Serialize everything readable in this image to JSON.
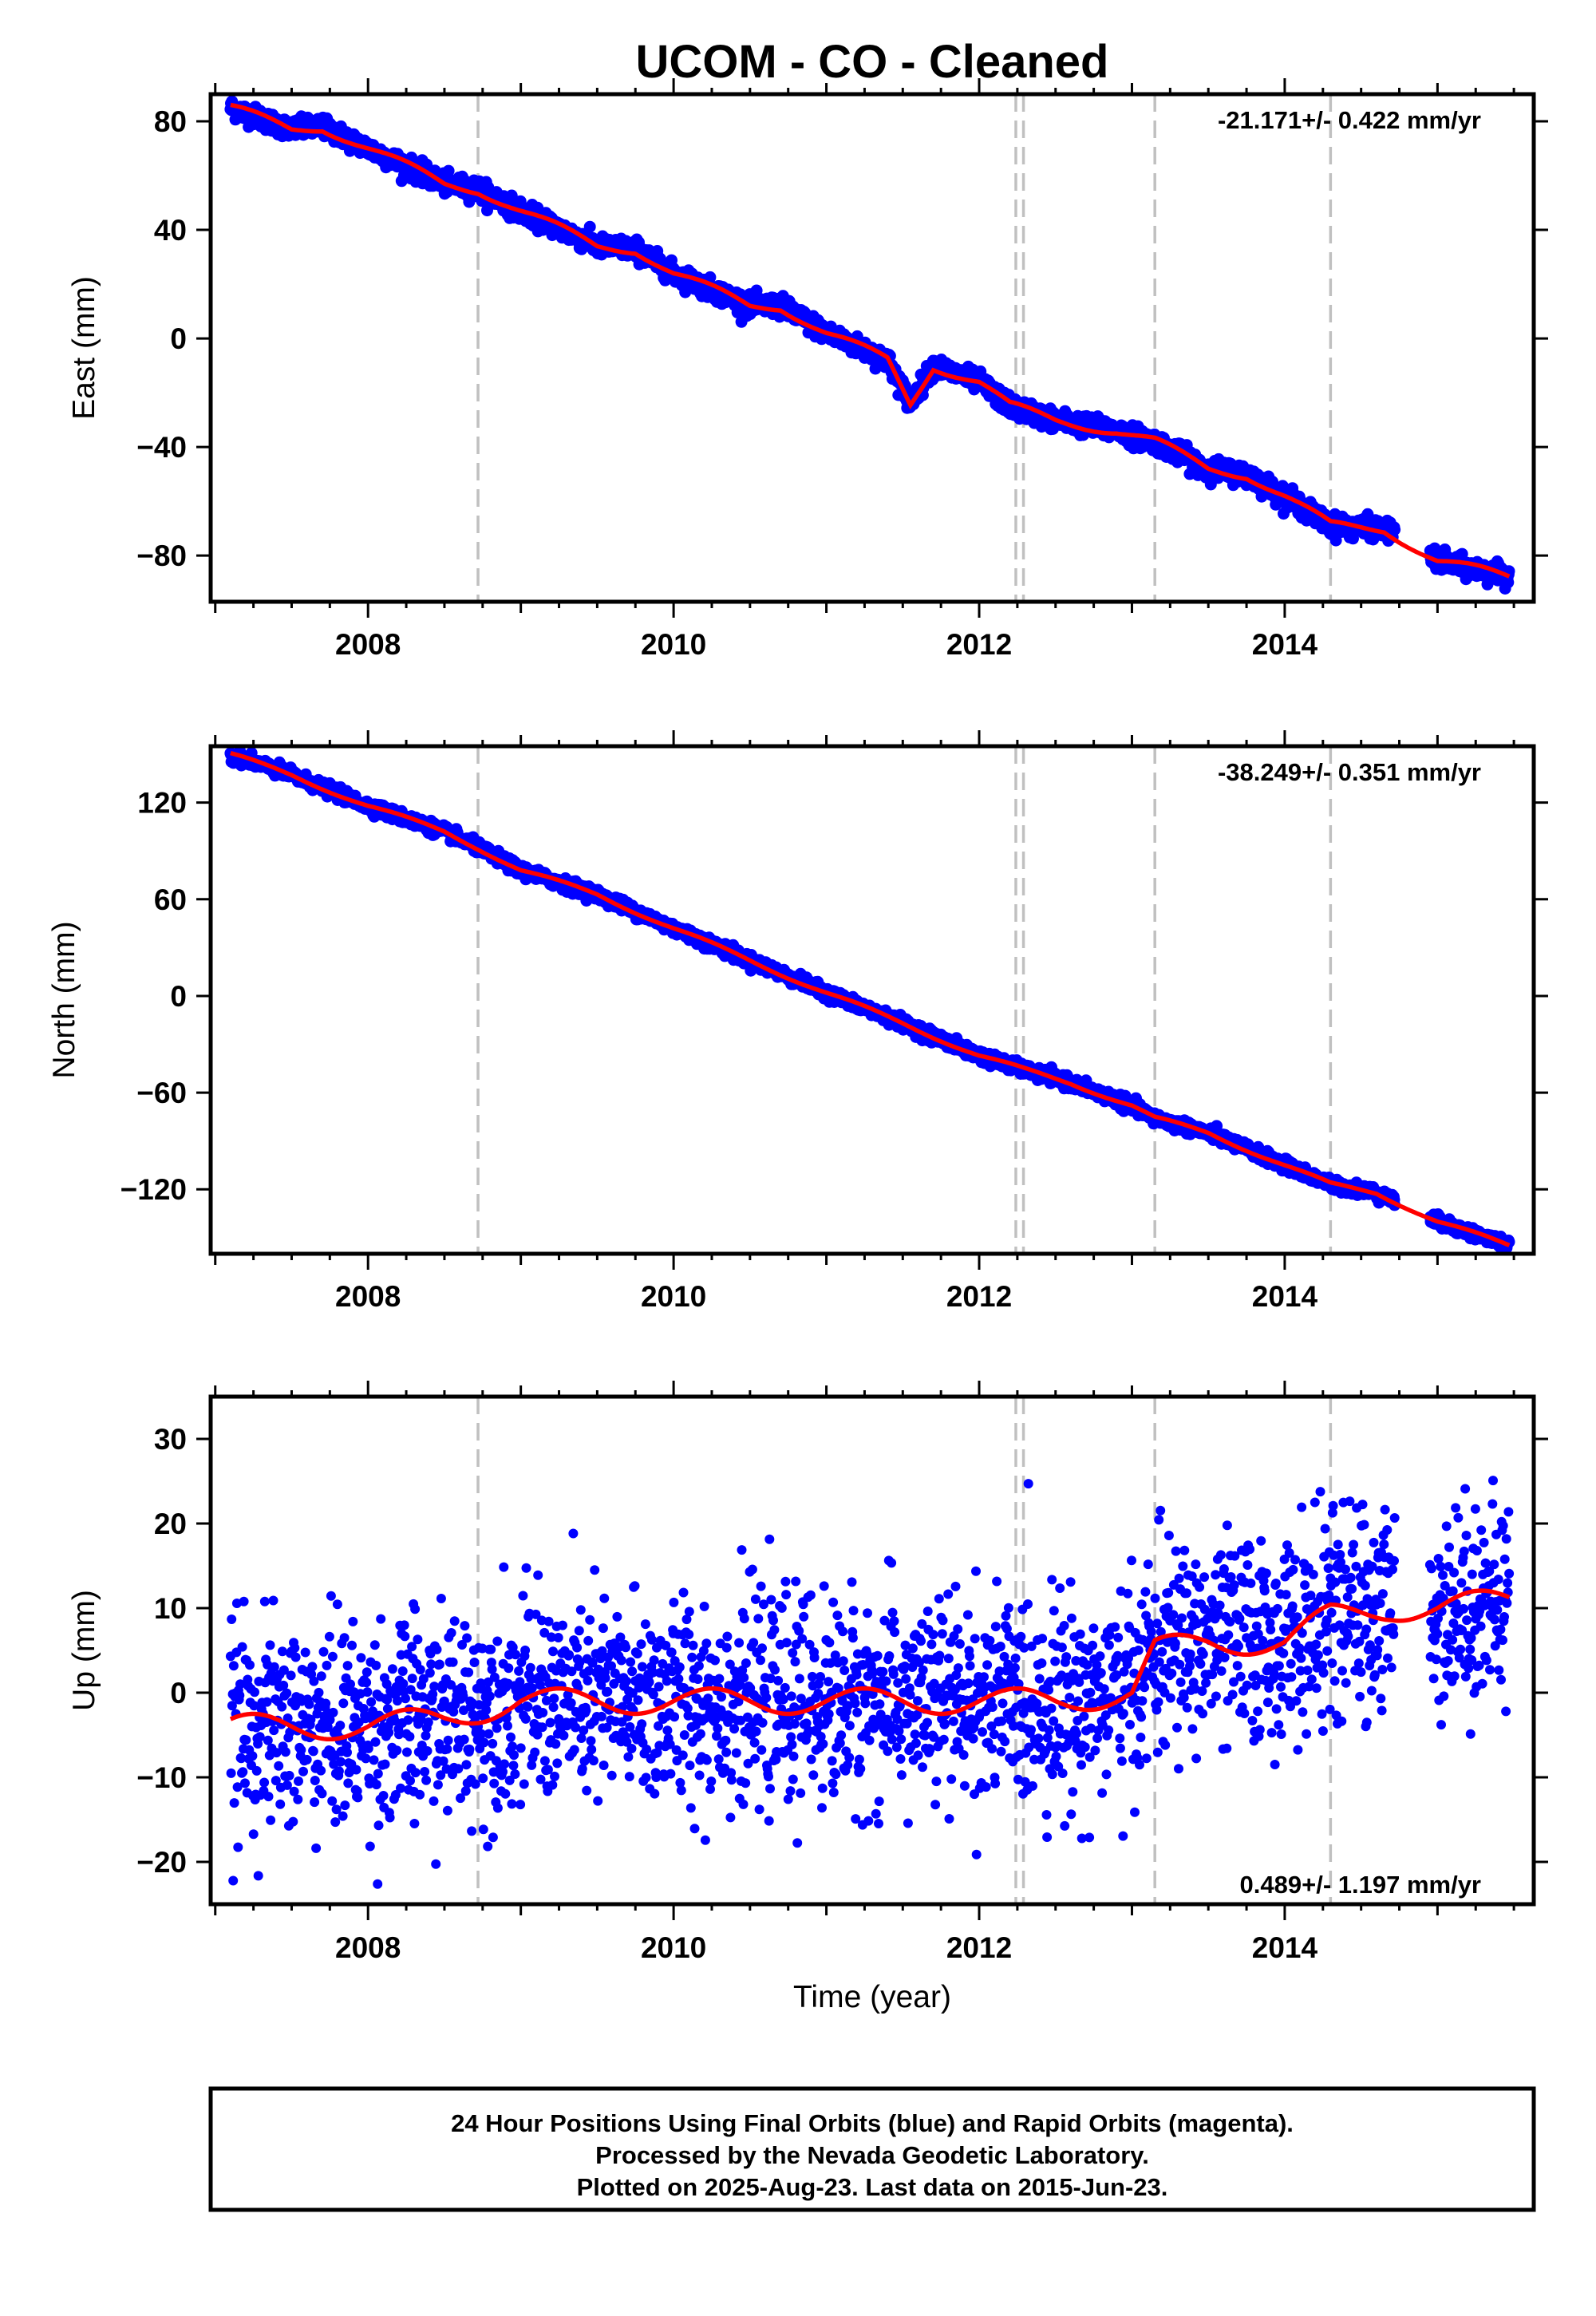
{
  "title": "UCOM  - CO - Cleaned",
  "colors": {
    "data": "#0000ff",
    "model": "#ff0000",
    "breaks": "#c0c0c0",
    "axes": "#000000"
  },
  "x_axis": {
    "label": "Time (year)",
    "ticks": [
      2008,
      2010,
      2012,
      2014
    ],
    "range": [
      2006.97,
      2015.63
    ]
  },
  "breaks": [
    2008.72,
    2012.24,
    2012.29,
    2013.15,
    2014.3
  ],
  "data_span": [
    2007.1,
    2015.47
  ],
  "chart_data": [
    {
      "type": "scatter",
      "component": "east",
      "ylabel": "East (mm)",
      "ylim": [
        -97,
        90
      ],
      "yticks": [
        80,
        40,
        0,
        -40,
        -80
      ],
      "rate_text": "-21.171+/- 0.422 mm/yr",
      "rate_position": "top-right",
      "trend": {
        "slope": -21.171,
        "t0": 2007.1,
        "y0": 85
      },
      "seasonal_amplitude": 3.0,
      "noise_sd": 1.8,
      "series": [
        {
          "name": "data",
          "x": [
            2007.1,
            2007.5,
            2007.7,
            2008.0,
            2008.5,
            2008.72,
            2009.0,
            2009.5,
            2009.75,
            2010.0,
            2010.5,
            2010.7,
            2011.0,
            2011.4,
            2011.55,
            2011.7,
            2012.0,
            2012.2,
            2012.5,
            2012.9,
            2013.15,
            2013.5,
            2013.75,
            2014.0,
            2014.3,
            2014.65,
            2015.0,
            2015.47
          ],
          "y": [
            85,
            77,
            78,
            70,
            57,
            55,
            47,
            34,
            33,
            24,
            12,
            12,
            2,
            -8,
            -24,
            -10,
            -16,
            -25,
            -30,
            -34,
            -38,
            -48,
            -50,
            -58,
            -69,
            -70,
            -82,
            -88
          ]
        }
      ]
    },
    {
      "type": "scatter",
      "component": "north",
      "ylabel": "North (mm)",
      "ylim": [
        -160,
        155
      ],
      "yticks": [
        120,
        60,
        0,
        -60,
        -120
      ],
      "rate_text": "-38.249+/- 0.351 mm/yr",
      "rate_position": "top-right",
      "trend": {
        "slope": -38.249,
        "t0": 2007.1,
        "y0": 150
      },
      "seasonal_amplitude": 2.2,
      "noise_sd": 1.8,
      "series": [
        {
          "name": "data",
          "x": [
            2007.1,
            2007.5,
            2008.0,
            2008.5,
            2008.72,
            2009.0,
            2009.5,
            2010.0,
            2010.5,
            2011.0,
            2011.5,
            2012.0,
            2012.3,
            2012.6,
            2013.0,
            2013.15,
            2013.5,
            2014.0,
            2014.3,
            2014.6,
            2015.0,
            2015.47
          ],
          "y": [
            150,
            137,
            118,
            102,
            92,
            78,
            63,
            42,
            22,
            2,
            -17,
            -37,
            -46,
            -54,
            -68,
            -76,
            -85,
            -105,
            -117,
            -122,
            -140,
            -155
          ]
        }
      ]
    },
    {
      "type": "scatter",
      "component": "up",
      "ylabel": "Up (mm)",
      "ylim": [
        -25,
        35
      ],
      "yticks": [
        30,
        20,
        10,
        0,
        -10,
        -20
      ],
      "rate_text": "0.489+/- 1.197 mm/yr",
      "rate_position": "bottom-right",
      "trend": {
        "slope": 0.489,
        "t0": 2007.1,
        "y0": -4
      },
      "seasonal_amplitude": 2.5,
      "noise_sd": 6.0,
      "series": [
        {
          "name": "data",
          "x": [
            2007.1,
            2007.5,
            2008.0,
            2008.5,
            2009.0,
            2009.5,
            2010.0,
            2010.5,
            2011.0,
            2011.5,
            2012.0,
            2012.5,
            2013.0,
            2013.15,
            2013.5,
            2014.0,
            2014.3,
            2014.7,
            2015.0,
            2015.47
          ],
          "y": [
            -4,
            -4,
            -4,
            -3,
            -1,
            -1,
            -1,
            -1,
            -1,
            -1,
            -1,
            -1,
            0,
            5,
            6,
            6,
            9,
            10,
            10,
            11
          ]
        }
      ]
    }
  ],
  "footer": {
    "line1": "24 Hour Positions Using Final Orbits (blue) and Rapid Orbits (magenta).",
    "line2": "Processed by the Nevada Geodetic Laboratory.",
    "line3": "Plotted on 2025-Aug-23. Last data on 2015-Jun-23."
  }
}
